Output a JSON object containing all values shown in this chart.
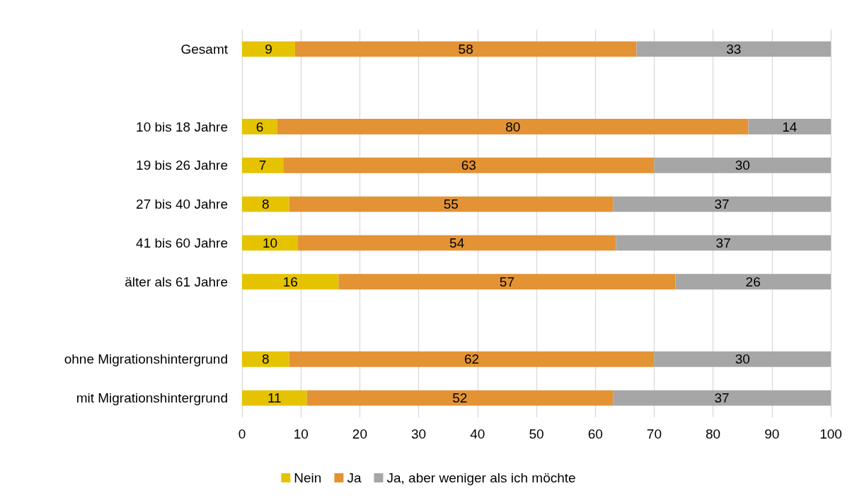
{
  "chart_data": {
    "type": "bar",
    "orientation": "horizontal",
    "stacked": true,
    "categories": [
      "Gesamt",
      null,
      "10 bis 18 Jahre",
      "19 bis 26 Jahre",
      "27 bis 40 Jahre",
      "41 bis 60 Jahre",
      "älter als 61 Jahre",
      null,
      "ohne Migrationshintergrund",
      "mit Migrationshintergrund"
    ],
    "series": [
      {
        "name": "Nein",
        "color": "#e6c300",
        "values": [
          9,
          null,
          6,
          7,
          8,
          9.5,
          16.4,
          null,
          8,
          11
        ],
        "value_labels": [
          "9",
          null,
          "6",
          "7",
          "8",
          "10",
          "16",
          null,
          "8",
          "11"
        ]
      },
      {
        "name": "Ja",
        "color": "#e39334",
        "values": [
          58,
          null,
          80,
          63,
          55,
          54,
          57.2,
          null,
          62,
          52
        ],
        "value_labels": [
          "58",
          null,
          "80",
          "63",
          "55",
          "54",
          "57",
          null,
          "62",
          "52"
        ]
      },
      {
        "name": "Ja, aber weniger als ich möchte",
        "color": "#a6a6a6",
        "values": [
          33,
          null,
          14,
          30,
          37,
          36.5,
          26.4,
          null,
          30,
          37
        ],
        "value_labels": [
          "33",
          null,
          "14",
          "30",
          "37",
          "37",
          "26",
          null,
          "30",
          "37"
        ]
      }
    ],
    "xlim": [
      0,
      100
    ],
    "xticks": [
      0,
      10,
      20,
      30,
      40,
      50,
      60,
      70,
      80,
      90,
      100
    ],
    "grid": "x",
    "legend": "bottom"
  }
}
